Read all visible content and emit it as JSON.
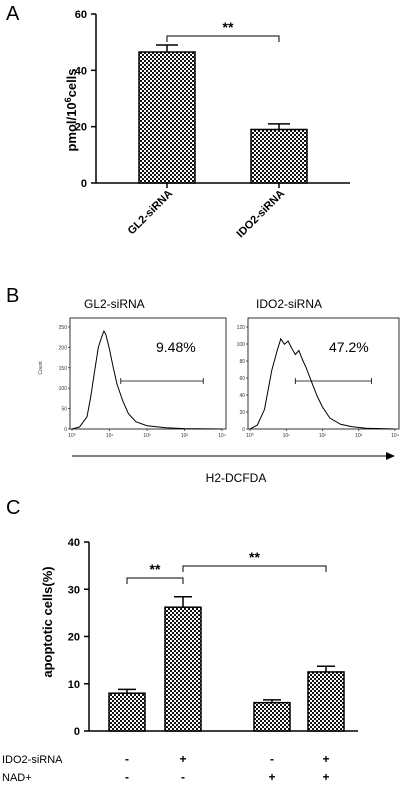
{
  "panels": {
    "a": {
      "letter": "A"
    },
    "b": {
      "letter": "B"
    },
    "c": {
      "letter": "C"
    }
  },
  "chart_data": [
    {
      "panel": "A",
      "type": "bar",
      "categories": [
        "GL2-siRNA",
        "IDO2-siRNA"
      ],
      "values": [
        46.5,
        19.0
      ],
      "errors": [
        2.5,
        2.0
      ],
      "ylabel_main": "pmol/10",
      "ylabel_sup": "6",
      "ylabel_tail": "cells",
      "ylim": [
        0,
        60
      ],
      "yticks": [
        "0",
        "20",
        "40",
        "60"
      ],
      "significance": [
        {
          "from": 0,
          "to": 1,
          "label": "**"
        }
      ],
      "bar_pattern": "checkerboard"
    },
    {
      "panel": "B",
      "type": "line",
      "xlabel": "H2-DCFDA",
      "plots": [
        {
          "title": "GL2-siRNA",
          "percent": "9.48%",
          "ylim": [
            0,
            250
          ],
          "yticks": [
            "0",
            "50",
            "100",
            "150",
            "200",
            "250"
          ],
          "ylabel": "Count",
          "xticks": [
            "10⁰",
            "10¹",
            "10²",
            "10³",
            "10⁴"
          ],
          "gate": [
            1.3,
            3.5
          ],
          "x": [
            0.0,
            0.2,
            0.4,
            0.5,
            0.6,
            0.7,
            0.8,
            0.85,
            0.9,
            1.0,
            1.1,
            1.2,
            1.35,
            1.5,
            1.7,
            2.0,
            2.5,
            3.0,
            4.0
          ],
          "y": [
            0,
            5,
            30,
            80,
            140,
            200,
            228,
            240,
            232,
            195,
            150,
            110,
            70,
            38,
            18,
            8,
            3,
            1,
            0
          ]
        },
        {
          "title": "IDO2-siRNA",
          "percent": "47.2%",
          "ylim": [
            0,
            130
          ],
          "yticks": [
            "0",
            "20",
            "40",
            "60",
            "80",
            "100",
            "120"
          ],
          "ylabel": "",
          "xticks": [
            "10⁰",
            "10¹",
            "10²",
            "10³",
            "10⁴"
          ],
          "gate": [
            1.25,
            3.35
          ],
          "x": [
            0.0,
            0.2,
            0.4,
            0.6,
            0.75,
            0.85,
            0.95,
            1.05,
            1.15,
            1.25,
            1.35,
            1.45,
            1.55,
            1.7,
            1.85,
            2.0,
            2.2,
            2.5,
            2.8,
            3.2,
            4.0
          ],
          "y": [
            0,
            5,
            25,
            75,
            100,
            115,
            108,
            112,
            103,
            95,
            100,
            88,
            78,
            60,
            42,
            28,
            14,
            6,
            3,
            1,
            0
          ]
        }
      ]
    },
    {
      "panel": "C",
      "type": "bar",
      "values": [
        8.0,
        26.2,
        6.0,
        12.5
      ],
      "errors": [
        0.8,
        2.2,
        0.6,
        1.2
      ],
      "ylabel": "apoptotic cells(%)",
      "ylim": [
        0,
        40
      ],
      "yticks": [
        "0",
        "10",
        "20",
        "30",
        "40"
      ],
      "significance": [
        {
          "from": 0,
          "to": 1,
          "label": "**"
        },
        {
          "from": 1,
          "to": 3,
          "label": "**"
        }
      ],
      "conditions": [
        {
          "label": "IDO2-siRNA",
          "signs": [
            "-",
            "+",
            "-",
            "+"
          ]
        },
        {
          "label": "NAD+",
          "signs": [
            "-",
            "-",
            "+",
            "+"
          ]
        }
      ],
      "bar_pattern": "checkerboard"
    }
  ]
}
